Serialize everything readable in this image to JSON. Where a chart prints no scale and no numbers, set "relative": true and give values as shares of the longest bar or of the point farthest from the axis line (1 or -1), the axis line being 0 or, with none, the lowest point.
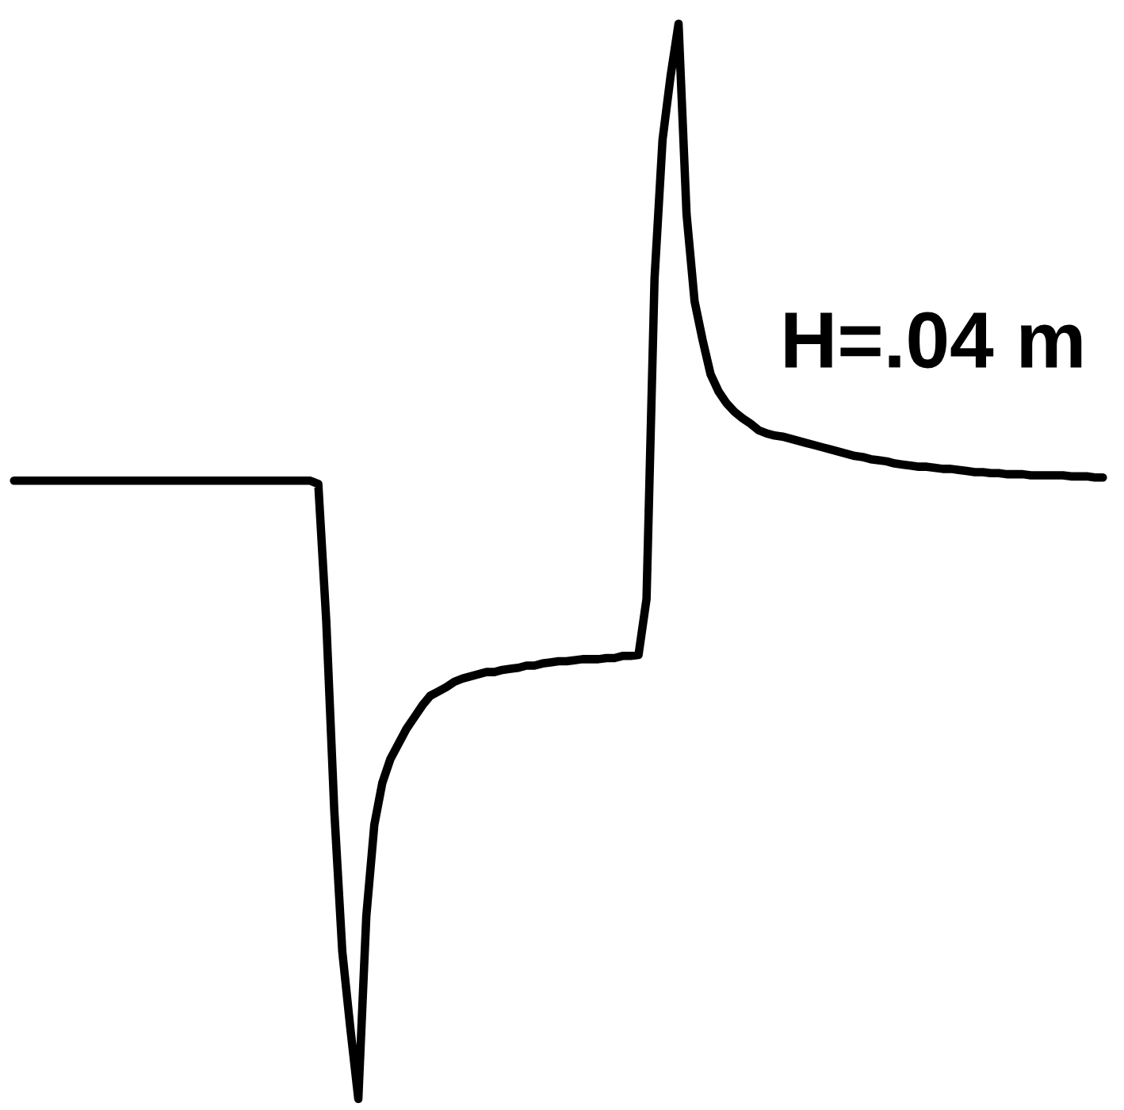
{
  "chart_data": {
    "type": "line",
    "relative": true,
    "color": "#000000",
    "line_style": "solid",
    "annotations": [
      "H=.04 m"
    ],
    "categories": [
      null,
      null,
      null,
      null,
      null,
      null,
      null,
      null,
      null,
      null,
      null,
      null,
      null,
      null,
      null,
      null,
      null,
      null,
      null,
      null,
      null,
      null,
      null,
      null,
      null,
      null,
      null,
      null,
      null,
      null,
      null,
      null,
      null,
      null,
      null,
      null,
      null,
      null,
      null,
      null,
      null,
      null,
      null,
      null,
      null,
      null,
      null,
      null,
      null,
      null,
      null,
      null,
      null,
      null,
      null,
      null,
      null,
      null,
      null,
      null,
      null,
      null,
      null,
      null,
      null,
      null,
      null,
      null,
      null,
      null,
      null,
      null,
      null,
      null,
      null,
      null,
      null,
      null,
      null,
      null,
      null,
      null,
      null,
      null,
      null,
      null,
      null,
      null,
      null,
      null,
      null,
      null,
      null,
      null,
      null,
      null,
      null,
      null,
      null,
      null,
      null,
      null,
      null,
      null,
      null,
      null,
      null,
      null,
      null,
      null,
      null,
      null,
      null,
      null,
      null,
      null,
      null,
      null,
      null,
      null,
      null,
      null,
      null,
      null,
      null,
      null,
      null,
      null,
      null,
      null,
      null,
      null,
      null,
      null,
      null,
      null,
      null
    ],
    "values": [
      0.575,
      0.575,
      0.575,
      0.575,
      0.575,
      0.575,
      0.575,
      0.575,
      0.575,
      0.575,
      0.575,
      0.575,
      0.575,
      0.575,
      0.575,
      0.575,
      0.575,
      0.575,
      0.575,
      0.575,
      0.575,
      0.575,
      0.575,
      0.575,
      0.575,
      0.575,
      0.575,
      0.575,
      0.575,
      0.575,
      0.575,
      0.575,
      0.575,
      0.575,
      0.575,
      0.575,
      0.575,
      0.575,
      0.572,
      0.444,
      0.268,
      0.137,
      0.066,
      0,
      0.17,
      0.255,
      0.294,
      0.316,
      0.33,
      0.344,
      0.355,
      0.366,
      0.375,
      0.379,
      0.383,
      0.388,
      0.391,
      0.393,
      0.395,
      0.397,
      0.397,
      0.399,
      0.4,
      0.401,
      0.403,
      0.403,
      0.405,
      0.406,
      0.407,
      0.407,
      0.408,
      0.409,
      0.409,
      0.409,
      0.41,
      0.41,
      0.412,
      0.412,
      0.413,
      0.465,
      0.763,
      0.892,
      0.951,
      1,
      0.823,
      0.742,
      0.706,
      0.674,
      0.658,
      0.647,
      0.639,
      0.633,
      0.628,
      0.622,
      0.619,
      0.617,
      0.616,
      0.614,
      0.612,
      0.61,
      0.608,
      0.606,
      0.604,
      0.602,
      0.6,
      0.598,
      0.597,
      0.595,
      0.594,
      0.593,
      0.591,
      0.59,
      0.589,
      0.588,
      0.588,
      0.587,
      0.586,
      0.586,
      0.585,
      0.584,
      0.583,
      0.583,
      0.582,
      0.582,
      0.581,
      0.581,
      0.581,
      0.58,
      0.58,
      0.58,
      0.58,
      0.58,
      0.579,
      0.579,
      0.579,
      0.578,
      0.578
    ]
  }
}
